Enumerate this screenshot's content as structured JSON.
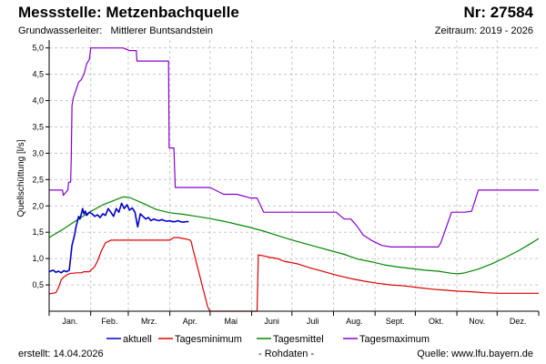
{
  "header": {
    "station": "Messstelle: Metzenbachquelle",
    "number": "Nr: 27584",
    "aquifer_label": "Grundwasserleiter:",
    "aquifer_value": "Mittlerer Buntsandstein",
    "period": "Zeitraum: 2019 - 2026"
  },
  "footer": {
    "created": "erstellt:  14.04.2026",
    "note": "- Rohdaten -",
    "source": "Quelle: www.lfu.bayern.de"
  },
  "colors": {
    "aktuell": "#0000cc",
    "minimum": "#dd0000",
    "mittel": "#008800",
    "maximum": "#8800cc",
    "grid": "#c8c8c8",
    "axis": "#000000"
  },
  "chart_data": {
    "type": "line",
    "ylabel": "Quellschüttung [l/s]",
    "xlabel": "",
    "ylim": [
      0,
      5.15
    ],
    "xlim": [
      0,
      365
    ],
    "grid": true,
    "legend_position": "bottom",
    "yticks": [
      {
        "value": 0.5,
        "label": "0,5"
      },
      {
        "value": 1.0,
        "label": "1,0"
      },
      {
        "value": 1.5,
        "label": "1,5"
      },
      {
        "value": 2.0,
        "label": "2,0"
      },
      {
        "value": 2.5,
        "label": "2,5"
      },
      {
        "value": 3.0,
        "label": "3,0"
      },
      {
        "value": 3.5,
        "label": "3,5"
      },
      {
        "value": 4.0,
        "label": "4,0"
      },
      {
        "value": 4.5,
        "label": "4,5"
      },
      {
        "value": 5.0,
        "label": "5,0"
      }
    ],
    "months": [
      "Jan.",
      "Feb.",
      "Mrz.",
      "Apr.",
      "Mai",
      "Juni",
      "Juli",
      "Aug.",
      "Sept.",
      "Okt.",
      "Nov.",
      "Dez."
    ],
    "month_starts": [
      0,
      31,
      59,
      90,
      120,
      151,
      181,
      212,
      243,
      273,
      304,
      334,
      365
    ],
    "series": [
      {
        "name": "aktuell",
        "key": "aktuell",
        "x": [
          0,
          3,
          5,
          7,
          9,
          11,
          13,
          15,
          17,
          19,
          20,
          21,
          22,
          23,
          24,
          25,
          26,
          27,
          28,
          30,
          32,
          34,
          36,
          38,
          40,
          42,
          44,
          46,
          48,
          50,
          52,
          54,
          56,
          58,
          60,
          62,
          64,
          66,
          68,
          70,
          72,
          74,
          76,
          78,
          80,
          82,
          84,
          86,
          88,
          90,
          92,
          94,
          96,
          98,
          100,
          102,
          104
        ],
        "y": [
          0.75,
          0.78,
          0.74,
          0.76,
          0.73,
          0.77,
          0.75,
          0.78,
          1.25,
          1.45,
          1.6,
          1.7,
          1.8,
          1.75,
          1.85,
          1.95,
          1.85,
          1.9,
          1.82,
          1.88,
          1.85,
          1.8,
          1.83,
          1.78,
          1.85,
          1.82,
          1.95,
          1.88,
          1.8,
          1.95,
          1.88,
          2.05,
          1.95,
          2.02,
          1.92,
          1.96,
          1.88,
          1.6,
          1.85,
          1.8,
          1.75,
          1.78,
          1.72,
          1.75,
          1.73,
          1.72,
          1.74,
          1.72,
          1.71,
          1.72,
          1.7,
          1.7,
          1.72,
          1.7,
          1.69,
          1.7,
          1.7
        ]
      },
      {
        "name": "Tagesminimum",
        "key": "minimum",
        "x": [
          0,
          5,
          7,
          9,
          11,
          14,
          16,
          18,
          20,
          24,
          26,
          28,
          30,
          32,
          33,
          34,
          36,
          39,
          42,
          46,
          49,
          50,
          60,
          70,
          80,
          90,
          93,
          96,
          100,
          104,
          105,
          106,
          107,
          108,
          109,
          110,
          111,
          112,
          113,
          114,
          115,
          116,
          117,
          118,
          119,
          120,
          125,
          131,
          140,
          150,
          155,
          156,
          160,
          165,
          170,
          175,
          185,
          195,
          205,
          215,
          225,
          235,
          245,
          255,
          265,
          275,
          285,
          295,
          305,
          315,
          325,
          335,
          345,
          355,
          365
        ],
        "y": [
          0.33,
          0.35,
          0.45,
          0.6,
          0.65,
          0.7,
          0.72,
          0.72,
          0.73,
          0.73,
          0.75,
          0.75,
          0.75,
          0.8,
          0.82,
          0.85,
          0.95,
          1.15,
          1.3,
          1.35,
          1.35,
          1.35,
          1.35,
          1.35,
          1.35,
          1.35,
          1.4,
          1.4,
          1.38,
          1.36,
          1.35,
          1.32,
          1.2,
          1.1,
          1.0,
          0.9,
          0.8,
          0.7,
          0.6,
          0.5,
          0.4,
          0.3,
          0.2,
          0.1,
          0.04,
          0.0,
          0.0,
          0.0,
          0.0,
          0.0,
          0.0,
          1.07,
          1.05,
          1.02,
          1.0,
          0.95,
          0.9,
          0.82,
          0.75,
          0.68,
          0.62,
          0.57,
          0.53,
          0.5,
          0.48,
          0.45,
          0.42,
          0.4,
          0.38,
          0.37,
          0.35,
          0.34,
          0.34,
          0.34,
          0.34
        ]
      },
      {
        "name": "Tagesmittel",
        "key": "mittel",
        "x": [
          0,
          10,
          20,
          30,
          40,
          50,
          55,
          60,
          70,
          80,
          90,
          100,
          110,
          120,
          130,
          140,
          150,
          160,
          170,
          180,
          190,
          200,
          210,
          220,
          230,
          240,
          250,
          260,
          270,
          280,
          290,
          300,
          305,
          310,
          320,
          330,
          340,
          350,
          360,
          365
        ],
        "y": [
          1.4,
          1.55,
          1.72,
          1.88,
          2.02,
          2.12,
          2.17,
          2.16,
          2.05,
          1.93,
          1.87,
          1.84,
          1.8,
          1.76,
          1.71,
          1.65,
          1.59,
          1.52,
          1.44,
          1.36,
          1.29,
          1.22,
          1.15,
          1.08,
          0.99,
          0.94,
          0.88,
          0.84,
          0.81,
          0.78,
          0.76,
          0.72,
          0.71,
          0.73,
          0.8,
          0.9,
          1.02,
          1.15,
          1.3,
          1.38
        ]
      },
      {
        "name": "Tagesmaximum",
        "key": "maximum",
        "x": [
          0,
          10,
          10.5,
          14,
          14.5,
          16,
          16.5,
          17,
          18,
          20,
          22,
          24,
          26,
          28,
          30,
          30.5,
          31,
          33,
          35,
          37,
          39,
          42,
          45,
          55,
          60,
          65,
          65.5,
          70,
          80,
          85,
          89,
          89.5,
          93,
          94,
          100,
          110,
          120,
          130,
          131,
          140,
          150,
          155,
          160,
          170,
          180,
          190,
          200,
          210,
          214,
          220,
          225,
          230,
          234,
          240,
          248,
          255,
          265,
          275,
          280,
          288,
          290,
          292,
          300,
          302,
          308,
          310,
          315,
          320,
          330,
          340,
          350,
          360,
          365
        ],
        "y": [
          2.3,
          2.3,
          2.2,
          2.3,
          2.45,
          2.45,
          2.9,
          3.9,
          4.05,
          4.2,
          4.35,
          4.4,
          4.5,
          4.7,
          4.78,
          4.9,
          5.0,
          5.0,
          5.0,
          5.0,
          5.0,
          5.0,
          5.0,
          5.0,
          4.95,
          4.95,
          4.75,
          4.75,
          4.75,
          4.75,
          4.75,
          3.1,
          3.1,
          2.35,
          2.35,
          2.35,
          2.35,
          2.22,
          2.22,
          2.22,
          2.15,
          2.15,
          1.88,
          1.88,
          1.88,
          1.88,
          1.88,
          1.88,
          1.88,
          1.75,
          1.75,
          1.6,
          1.45,
          1.35,
          1.25,
          1.22,
          1.22,
          1.22,
          1.22,
          1.22,
          1.22,
          1.3,
          1.88,
          1.88,
          1.88,
          1.88,
          1.9,
          2.3,
          2.3,
          2.3,
          2.3,
          2.3,
          2.3
        ]
      }
    ]
  }
}
